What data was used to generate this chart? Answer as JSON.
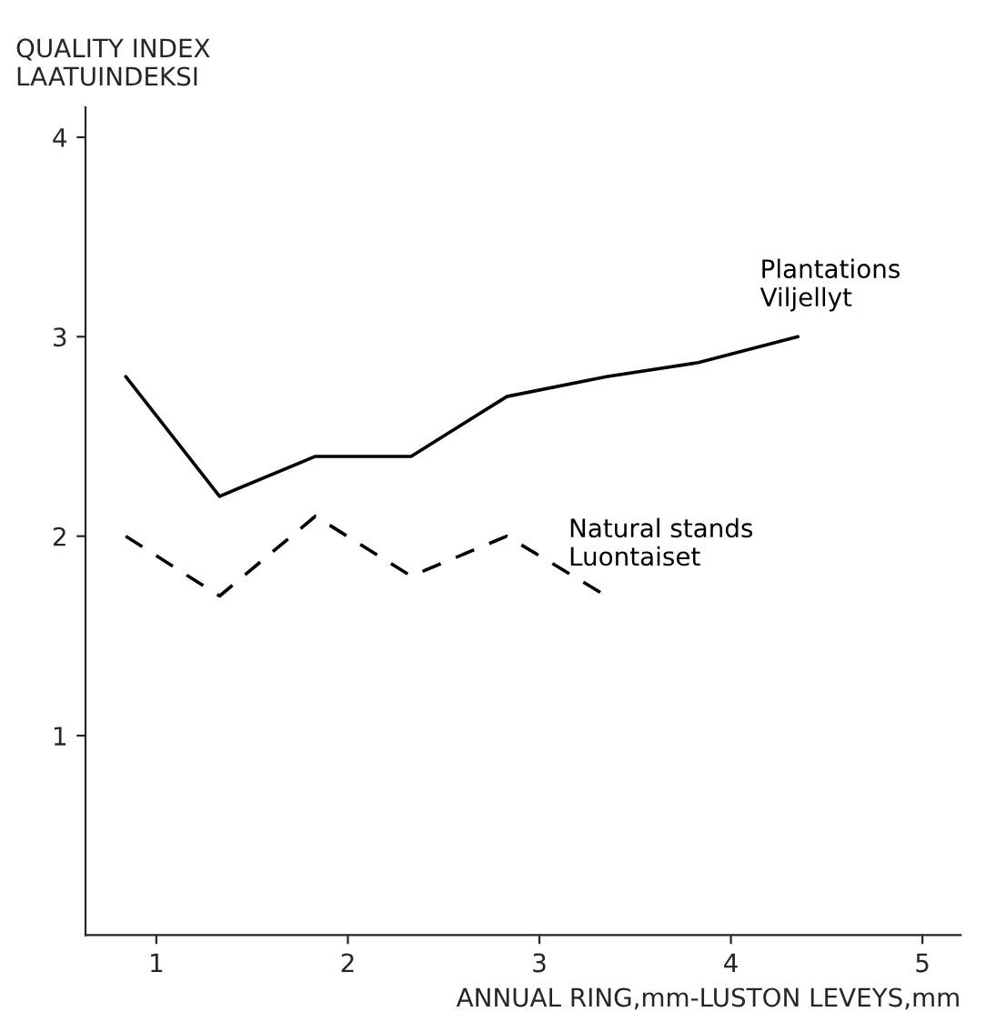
{
  "chart_data": {
    "type": "line",
    "ylabel": "QUALITY INDEX\nLAATUINDEKSI",
    "xlabel": "ANNUAL RING,mm-LUSTON LEVEYS,mm",
    "xlim": [
      0.63,
      5.2
    ],
    "ylim": [
      0,
      4.15
    ],
    "xticks": [
      1,
      2,
      3,
      4,
      5
    ],
    "yticks": [
      1,
      2,
      3,
      4
    ],
    "grid": false,
    "legend": false,
    "marker": "none",
    "series": [
      {
        "name": "Plantations\nViljellyt",
        "color": "#000000",
        "line_style": "solid",
        "x": [
          0.84,
          1.33,
          1.83,
          2.33,
          2.83,
          3.35,
          3.83,
          4.35
        ],
        "values": [
          2.8,
          2.2,
          2.4,
          2.4,
          2.7,
          2.8,
          2.87,
          3.0
        ]
      },
      {
        "name": "Natural stands\nLuontaiset",
        "color": "#000000",
        "line_style": "dashed",
        "x": [
          0.84,
          1.33,
          1.83,
          2.33,
          2.83,
          3.35
        ],
        "values": [
          2.0,
          1.7,
          2.1,
          1.8,
          2.0,
          1.7
        ]
      }
    ]
  }
}
